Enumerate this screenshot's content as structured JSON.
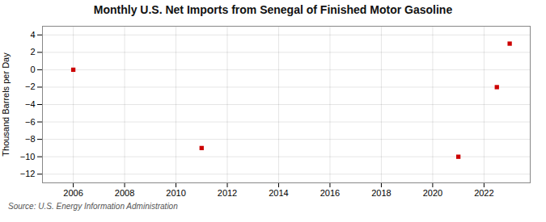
{
  "chart_data": {
    "type": "scatter",
    "title": "Monthly U.S. Net Imports from Senegal of Finished Motor Gasoline",
    "ylabel": "Thousand Barrels per Day",
    "source": "Source: U.S. Energy Information Administration",
    "x": [
      2006.0,
      2011.0,
      2021.0,
      2023.0,
      2022.5
    ],
    "values": [
      0,
      -9,
      -10,
      3,
      -2
    ],
    "color": "#cc0000",
    "marker": "square",
    "xlim": [
      2004.8,
      2023.8
    ],
    "ylim": [
      -13,
      5
    ],
    "xticks": [
      2006,
      2008,
      2010,
      2012,
      2014,
      2016,
      2018,
      2020,
      2022
    ],
    "yticks": [
      -12,
      -10,
      -8,
      -6,
      -4,
      -2,
      0,
      2,
      4
    ],
    "grid": true
  }
}
